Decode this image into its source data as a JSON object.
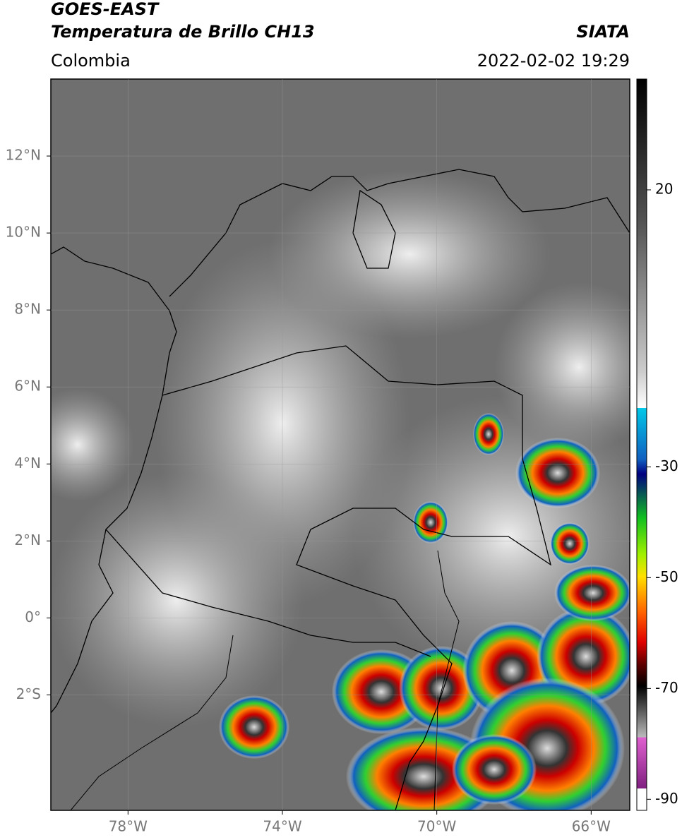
{
  "header": {
    "title": "GOES-EAST",
    "subtitle": "Temperatura de Brillo CH13",
    "source": "SIATA",
    "region": "Colombia",
    "timestamp": "2022-02-02 19:29"
  },
  "map": {
    "xlim": [
      -80,
      -65
    ],
    "ylim": [
      -5,
      14
    ],
    "xticks": [
      {
        "value": -78,
        "label": "78°W"
      },
      {
        "value": -74,
        "label": "74°W"
      },
      {
        "value": -70,
        "label": "70°W"
      },
      {
        "value": -66,
        "label": "66°W"
      }
    ],
    "yticks": [
      {
        "value": 12,
        "label": "12°N"
      },
      {
        "value": 10,
        "label": "10°N"
      },
      {
        "value": 8,
        "label": "8°N"
      },
      {
        "value": 6,
        "label": "6°N"
      },
      {
        "value": 4,
        "label": "4°N"
      },
      {
        "value": 2,
        "label": "2°N"
      },
      {
        "value": 0,
        "label": "0°"
      },
      {
        "value": -2,
        "label": "2°S"
      }
    ]
  },
  "colorbar": {
    "range": [
      -92,
      40
    ],
    "ticks": [
      20,
      -30,
      -50,
      -70,
      -90
    ]
  }
}
